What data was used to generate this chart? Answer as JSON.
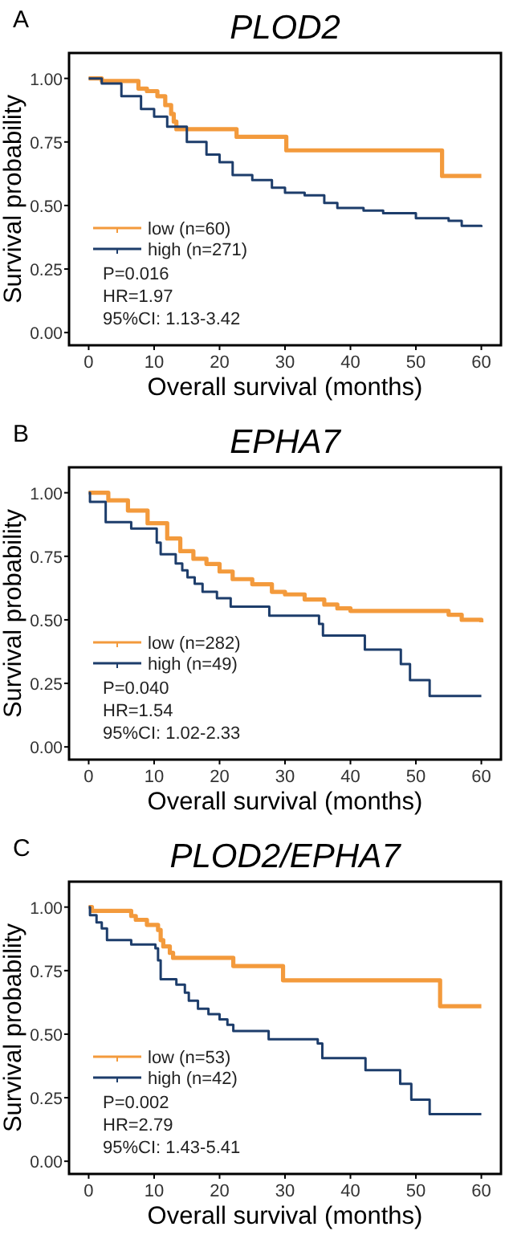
{
  "chart_data": [
    {
      "type": "step",
      "title": "PLOD2",
      "xlabel": "Overall survival (months)",
      "ylabel": "Survival probability",
      "annotations": [
        "A",
        "P=0.016",
        "HR=1.97",
        "95%CI: 1.13-3.42"
      ],
      "xlim": [
        -3,
        63
      ],
      "ylim": [
        -0.05,
        1.1
      ],
      "xticks": [
        0,
        10,
        20,
        30,
        40,
        50,
        60
      ],
      "yticks": [
        {
          "value": 0,
          "label": "0.00"
        },
        {
          "value": 0.25,
          "label": "0.25"
        },
        {
          "value": 0.5,
          "label": "0.50"
        },
        {
          "value": 0.75,
          "label": "0.75"
        },
        {
          "value": 1,
          "label": "1.00"
        }
      ],
      "legend": "bottom left",
      "grid": false,
      "series": [
        {
          "name": "low (n=60)",
          "color": "#f39a3c",
          "x": [
            0,
            2,
            7.6,
            8.9,
            10.5,
            11.7,
            12.6,
            13,
            13.4,
            22.6,
            30.2,
            54,
            60
          ],
          "values": [
            1,
            0.99,
            0.96,
            0.95,
            0.93,
            0.895,
            0.86,
            0.83,
            0.8,
            0.77,
            0.717,
            0.616,
            0.616
          ]
        },
        {
          "name": "high (n=271)",
          "color": "#1d3d6b",
          "x": [
            0,
            2,
            5,
            8,
            10,
            12,
            15,
            18,
            20,
            22,
            25,
            28,
            30,
            33,
            36,
            38,
            42,
            45,
            50,
            55,
            57,
            60
          ],
          "values": [
            1,
            0.98,
            0.93,
            0.88,
            0.85,
            0.81,
            0.75,
            0.7,
            0.67,
            0.62,
            0.6,
            0.57,
            0.55,
            0.54,
            0.51,
            0.49,
            0.48,
            0.47,
            0.45,
            0.44,
            0.42,
            0.415
          ]
        }
      ]
    },
    {
      "type": "step",
      "title": "EPHA7",
      "xlabel": "Overall survival (months)",
      "ylabel": "Survival probability",
      "annotations": [
        "B",
        "P=0.040",
        "HR=1.54",
        "95%CI: 1.02-2.33"
      ],
      "xlim": [
        -3,
        63
      ],
      "ylim": [
        -0.05,
        1.1
      ],
      "xticks": [
        0,
        10,
        20,
        30,
        40,
        50,
        60
      ],
      "yticks": [
        {
          "value": 0,
          "label": "0.00"
        },
        {
          "value": 0.25,
          "label": "0.25"
        },
        {
          "value": 0.5,
          "label": "0.50"
        },
        {
          "value": 0.75,
          "label": "0.75"
        },
        {
          "value": 1,
          "label": "1.00"
        }
      ],
      "legend": "bottom left",
      "grid": false,
      "series": [
        {
          "name": "low (n=282)",
          "color": "#f39a3c",
          "x": [
            0,
            3,
            6,
            9,
            12,
            14,
            16,
            18,
            20,
            22,
            25,
            28,
            30,
            33,
            36,
            38,
            40,
            45,
            50,
            53,
            55,
            57,
            60
          ],
          "values": [
            1,
            0.97,
            0.93,
            0.88,
            0.82,
            0.77,
            0.74,
            0.72,
            0.69,
            0.66,
            0.64,
            0.61,
            0.6,
            0.58,
            0.56,
            0.545,
            0.535,
            0.535,
            0.535,
            0.535,
            0.52,
            0.5,
            0.49
          ]
        },
        {
          "name": "high (n=49)",
          "color": "#1d3d6b",
          "x": [
            0,
            0.2,
            2.6,
            6.5,
            10.4,
            11,
            13.3,
            14.3,
            15.1,
            16.2,
            17.4,
            19.6,
            21.7,
            27.6,
            35.2,
            35.8,
            42.2,
            47.7,
            49.1,
            52.1,
            60
          ],
          "values": [
            1,
            0.964,
            0.884,
            0.859,
            0.804,
            0.758,
            0.722,
            0.695,
            0.667,
            0.642,
            0.61,
            0.585,
            0.552,
            0.516,
            0.484,
            0.438,
            0.383,
            0.326,
            0.263,
            0.2,
            0.2
          ]
        }
      ]
    },
    {
      "type": "step",
      "title": "PLOD2/EPHA7",
      "xlabel": "Overall survival (months)",
      "ylabel": "Survival probability",
      "annotations": [
        "C",
        "P=0.002",
        "HR=2.79",
        "95%CI: 1.43-5.41"
      ],
      "xlim": [
        -3,
        63
      ],
      "ylim": [
        -0.05,
        1.1
      ],
      "xticks": [
        0,
        10,
        20,
        30,
        40,
        50,
        60
      ],
      "yticks": [
        {
          "value": 0,
          "label": "0.00"
        },
        {
          "value": 0.25,
          "label": "0.25"
        },
        {
          "value": 0.5,
          "label": "0.50"
        },
        {
          "value": 0.75,
          "label": "0.75"
        },
        {
          "value": 1,
          "label": "1.00"
        }
      ],
      "legend": "bottom left",
      "grid": false,
      "series": [
        {
          "name": "low (n=53)",
          "color": "#f39a3c",
          "x": [
            0,
            0.5,
            6.5,
            7.2,
            8.9,
            10.6,
            11,
            11.4,
            12.4,
            12.9,
            22.1,
            29.7,
            53.7,
            60
          ],
          "values": [
            1,
            0.985,
            0.965,
            0.95,
            0.93,
            0.91,
            0.87,
            0.845,
            0.82,
            0.8,
            0.768,
            0.712,
            0.61,
            0.61
          ]
        },
        {
          "name": "high (n=42)",
          "color": "#1d3d6b",
          "x": [
            0,
            0.2,
            1.2,
            2,
            2.8,
            6.5,
            10.2,
            10.6,
            11,
            13.4,
            14.7,
            15.3,
            16.7,
            18.3,
            20,
            21.2,
            22.1,
            27.5,
            35,
            35.7,
            42.3,
            47.6,
            49.3,
            52.1,
            60
          ],
          "values": [
            1,
            0.968,
            0.94,
            0.916,
            0.87,
            0.853,
            0.838,
            0.79,
            0.716,
            0.695,
            0.663,
            0.632,
            0.6,
            0.579,
            0.558,
            0.537,
            0.512,
            0.48,
            0.463,
            0.406,
            0.358,
            0.305,
            0.242,
            0.185,
            0.185
          ]
        }
      ]
    }
  ]
}
